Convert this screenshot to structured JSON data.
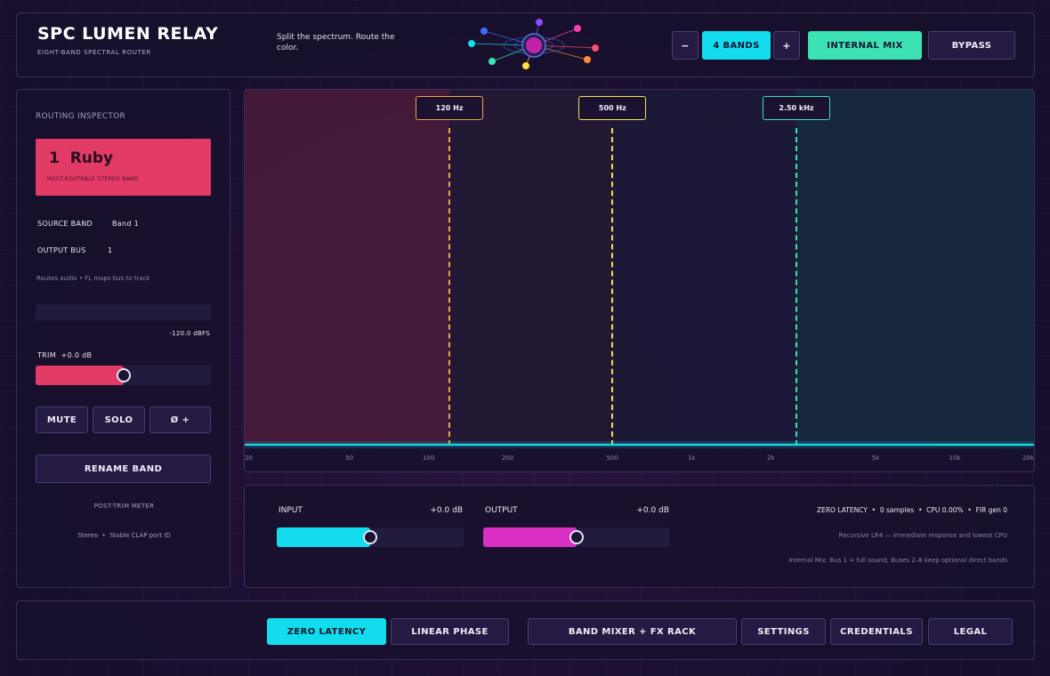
{
  "header": {
    "title": "SPC LUMEN RELAY",
    "subtitle": "EIGHT-BAND SPECTRAL ROUTER",
    "tagline": "Split the spectrum. Route the color.",
    "band_minus": "−",
    "band_count": "4 BANDS",
    "band_plus": "+",
    "internal_mix": "INTERNAL MIX",
    "bypass": "BYPASS",
    "logo_icon": "spectral-orbit-logo",
    "logo_colors": [
      "#8a4dff",
      "#ff3db0",
      "#ff4d6d",
      "#ff8a3d",
      "#ffe03d",
      "#3de2b4",
      "#12dced",
      "#3d6dff"
    ]
  },
  "inspector": {
    "heading": "ROUTING INSPECTOR",
    "band_number": "1",
    "band_name": "Ruby",
    "band_card_sub": "HOST-ROUTABLE STEREO BAND",
    "band_color": "#e23b66",
    "source_band_label": "SOURCE BAND",
    "source_band_value": "Band 1",
    "output_bus_label": "OUTPUT BUS",
    "output_bus_value": "1",
    "routing_note": "Routes audio • FL maps bus to track",
    "meter_level": 0,
    "meter_readout": "-120.0 dBFS",
    "trim_label": "TRIM",
    "trim_value": "+0.0 dB",
    "trim_position": 0.5,
    "mute": "MUTE",
    "solo": "SOLO",
    "phase": "Ø +",
    "rename": "RENAME BAND",
    "post_trim_label": "POST-TRIM METER",
    "port_note": "Stereo  •  Stable CLAP port ID"
  },
  "spectrum": {
    "crossovers": [
      {
        "label": "120 Hz",
        "hz": 120,
        "color": "#f0a14a"
      },
      {
        "label": "500 Hz",
        "hz": 500,
        "color": "#f2e34a"
      },
      {
        "label": "2.50 kHz",
        "hz": 2500,
        "color": "#3de2b4"
      }
    ],
    "band_colors": [
      "#e23b66",
      "#2b1f3a",
      "#1f2040",
      "#16384a"
    ],
    "ticks": [
      {
        "label": "20",
        "hz": 20
      },
      {
        "label": "50",
        "hz": 50
      },
      {
        "label": "100",
        "hz": 100
      },
      {
        "label": "200",
        "hz": 200
      },
      {
        "label": "500",
        "hz": 500
      },
      {
        "label": "1k",
        "hz": 1000
      },
      {
        "label": "2k",
        "hz": 2000
      },
      {
        "label": "5k",
        "hz": 5000
      },
      {
        "label": "10k",
        "hz": 10000
      },
      {
        "label": "20k",
        "hz": 20000
      }
    ],
    "log_scale": true,
    "range_hz": [
      20,
      20000
    ]
  },
  "io": {
    "input_label": "INPUT",
    "input_value": "+0.0 dB",
    "input_position": 0.5,
    "output_label": "OUTPUT",
    "output_value": "+0.0 dB",
    "output_position": 0.5,
    "latency_mode": "ZERO LATENCY",
    "latency_samples": "0 samples",
    "cpu": "CPU 0.00%",
    "fir": "FIR gen 0",
    "mode_note": "Recursive LR4 — immediate response and lowest CPU",
    "mix_note": "Internal Mix: Bus 1 = full sound; Buses 2–8 keep optional direct bands"
  },
  "footer": {
    "zero_latency": "ZERO LATENCY",
    "linear_phase": "LINEAR PHASE",
    "band_mixer": "BAND MIXER + FX RACK",
    "settings": "SETTINGS",
    "credentials": "CREDENTIALS",
    "legal": "LEGAL"
  }
}
